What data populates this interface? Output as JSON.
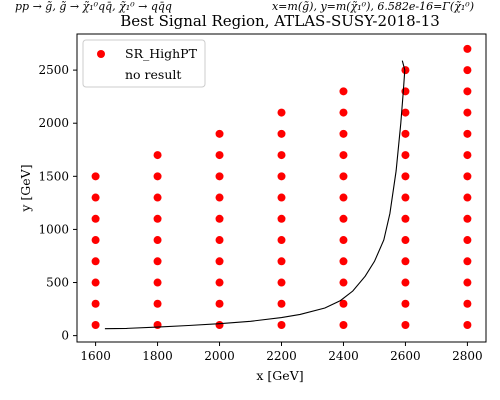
{
  "header": {
    "process": "pp → g̃, g̃ → χ̃₁⁰qq̄, χ̃₁⁰ → qq̄q",
    "mapping": "x=m(g̃), y=m(χ̃₁⁰), 6.582e-16=Γ(χ̃₁⁰)"
  },
  "chart_data": {
    "type": "scatter",
    "title": "Best Signal Region, ATLAS-SUSY-2018-13",
    "xlabel": "x [GeV]",
    "ylabel": "y [GeV]",
    "xlim": [
      1540,
      2860
    ],
    "ylim": [
      -60,
      2840
    ],
    "xticks": [
      1600,
      1800,
      2000,
      2200,
      2400,
      2600,
      2800
    ],
    "yticks": [
      0,
      500,
      1000,
      1500,
      2000,
      2500
    ],
    "grid": false,
    "legend_position": "top-left",
    "legend": [
      {
        "label": "SR_HighPT",
        "marker": "circle",
        "color": "#ff0000"
      },
      {
        "label": "no result",
        "marker": "none",
        "color": "#ffffff"
      }
    ],
    "series": [
      {
        "name": "SR_HighPT",
        "color": "#ff0000",
        "points": [
          [
            1600,
            100
          ],
          [
            1600,
            300
          ],
          [
            1600,
            500
          ],
          [
            1600,
            700
          ],
          [
            1600,
            900
          ],
          [
            1600,
            1100
          ],
          [
            1600,
            1300
          ],
          [
            1600,
            1500
          ],
          [
            1800,
            100
          ],
          [
            1800,
            300
          ],
          [
            1800,
            500
          ],
          [
            1800,
            700
          ],
          [
            1800,
            900
          ],
          [
            1800,
            1100
          ],
          [
            1800,
            1300
          ],
          [
            1800,
            1500
          ],
          [
            1800,
            1700
          ],
          [
            2000,
            100
          ],
          [
            2000,
            300
          ],
          [
            2000,
            500
          ],
          [
            2000,
            700
          ],
          [
            2000,
            900
          ],
          [
            2000,
            1100
          ],
          [
            2000,
            1300
          ],
          [
            2000,
            1500
          ],
          [
            2000,
            1700
          ],
          [
            2000,
            1900
          ],
          [
            2200,
            100
          ],
          [
            2200,
            300
          ],
          [
            2200,
            500
          ],
          [
            2200,
            700
          ],
          [
            2200,
            900
          ],
          [
            2200,
            1100
          ],
          [
            2200,
            1300
          ],
          [
            2200,
            1500
          ],
          [
            2200,
            1700
          ],
          [
            2200,
            1900
          ],
          [
            2200,
            2100
          ],
          [
            2400,
            100
          ],
          [
            2400,
            300
          ],
          [
            2400,
            500
          ],
          [
            2400,
            700
          ],
          [
            2400,
            900
          ],
          [
            2400,
            1100
          ],
          [
            2400,
            1300
          ],
          [
            2400,
            1500
          ],
          [
            2400,
            1700
          ],
          [
            2400,
            1900
          ],
          [
            2400,
            2100
          ],
          [
            2400,
            2300
          ],
          [
            2600,
            100
          ],
          [
            2600,
            300
          ],
          [
            2600,
            500
          ],
          [
            2600,
            700
          ],
          [
            2600,
            900
          ],
          [
            2600,
            1100
          ],
          [
            2600,
            1300
          ],
          [
            2600,
            1500
          ],
          [
            2600,
            1700
          ],
          [
            2600,
            1900
          ],
          [
            2600,
            2100
          ],
          [
            2600,
            2300
          ],
          [
            2600,
            2500
          ],
          [
            2800,
            100
          ],
          [
            2800,
            300
          ],
          [
            2800,
            500
          ],
          [
            2800,
            700
          ],
          [
            2800,
            900
          ],
          [
            2800,
            1100
          ],
          [
            2800,
            1300
          ],
          [
            2800,
            1500
          ],
          [
            2800,
            1700
          ],
          [
            2800,
            1900
          ],
          [
            2800,
            2100
          ],
          [
            2800,
            2300
          ],
          [
            2800,
            2500
          ],
          [
            2800,
            2700
          ]
        ]
      },
      {
        "type": "line",
        "color": "#000000",
        "points": [
          [
            1630,
            65
          ],
          [
            1700,
            68
          ],
          [
            1800,
            80
          ],
          [
            1900,
            95
          ],
          [
            2000,
            112
          ],
          [
            2100,
            135
          ],
          [
            2200,
            170
          ],
          [
            2260,
            200
          ],
          [
            2340,
            260
          ],
          [
            2390,
            330
          ],
          [
            2430,
            420
          ],
          [
            2470,
            560
          ],
          [
            2500,
            700
          ],
          [
            2530,
            900
          ],
          [
            2550,
            1150
          ],
          [
            2570,
            1550
          ],
          [
            2585,
            2000
          ],
          [
            2593,
            2300
          ],
          [
            2598,
            2500
          ],
          [
            2590,
            2590
          ]
        ]
      }
    ]
  }
}
